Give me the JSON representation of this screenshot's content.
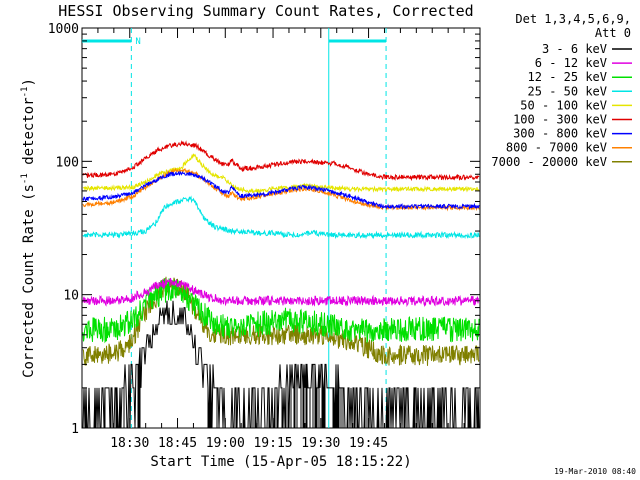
{
  "chart_data": {
    "type": "line",
    "title": "HESSI Observing Summary Count Rates, Corrected",
    "xlabel": "Start Time (15-Apr-05 18:15:22)",
    "ylabel_main": "Corrected Count Rate (s",
    "ylabel_sup1": "-1",
    "ylabel_mid": " detector",
    "ylabel_sup2": "-1",
    "ylabel_end": ")",
    "yscale": "log",
    "ylim": [
      1,
      1000
    ],
    "xlim_min": [
      0,
      125
    ],
    "ytick_labels": [
      "1",
      "10",
      "100",
      "1000"
    ],
    "ytick_values": [
      1,
      10,
      100,
      1000
    ],
    "xtick_labels": [
      "18:30",
      "18:45",
      "19:00",
      "19:15",
      "19:30",
      "19:45"
    ],
    "xtick_values_min": [
      15,
      30,
      45,
      60,
      75,
      90
    ],
    "legend_header": [
      "Det 1,3,4,5,6,9,",
      "Att 0"
    ],
    "timestamp": "19-Mar-2010 08:40",
    "night_flag": "N",
    "flag_color": "#00e5e5",
    "flag_lines_min": [
      {
        "t": 15.5,
        "style": "dashed"
      },
      {
        "t": 77.5,
        "style": "solid"
      },
      {
        "t": 95.5,
        "style": "dashed"
      }
    ],
    "flag_bars_min": [
      [
        0,
        15.5
      ],
      [
        77.5,
        95.5
      ]
    ],
    "series": [
      {
        "name": "3 - 6 keV",
        "color": "#000000",
        "x": [
          0,
          10,
          16,
          20,
          25,
          28,
          32,
          36,
          40,
          45,
          50,
          55,
          60,
          65,
          70,
          75,
          80,
          85,
          90,
          95
        ],
        "y": [
          1.5,
          1.5,
          2,
          4,
          7,
          8,
          7,
          4,
          2,
          1.5,
          1.5,
          1.6,
          1.8,
          2,
          2.5,
          2.5,
          2,
          1.6,
          1.5,
          1.5
        ]
      },
      {
        "name": "6 - 12 keV",
        "color": "#e000e0",
        "x": [
          0,
          10,
          16,
          20,
          25,
          28,
          32,
          36,
          40,
          45,
          55,
          65,
          75,
          85,
          95
        ],
        "y": [
          9,
          9,
          9.5,
          10.5,
          12,
          12.5,
          12,
          10.5,
          9.5,
          9,
          9,
          9,
          9,
          9,
          9
        ]
      },
      {
        "name": "12 - 25 keV",
        "color": "#00e000",
        "x": [
          0,
          10,
          16,
          20,
          25,
          28,
          32,
          36,
          40,
          45,
          55,
          65,
          75,
          85,
          95
        ],
        "y": [
          5.5,
          5.5,
          6.5,
          8.5,
          10.5,
          11,
          10.5,
          8,
          6.5,
          5.8,
          6,
          6.5,
          6,
          5.5,
          5.5
        ]
      },
      {
        "name": "25 - 50 keV",
        "color": "#00e5e5",
        "x": [
          0,
          10,
          16,
          20,
          23,
          26,
          28,
          30,
          32,
          35,
          38,
          42,
          47,
          55,
          60,
          65,
          72,
          80,
          88,
          95
        ],
        "y": [
          28,
          28,
          29,
          30,
          34,
          46,
          48,
          50,
          52,
          52,
          38,
          32,
          30,
          29,
          29,
          28,
          29,
          28,
          28,
          28
        ]
      },
      {
        "name": "50 - 100 keV",
        "color": "#e5e500",
        "x": [
          0,
          10,
          16,
          20,
          24,
          28,
          31,
          33,
          35,
          38,
          41,
          44,
          48,
          52,
          56,
          60,
          65,
          70,
          75,
          80,
          85,
          90,
          95
        ],
        "y": [
          63,
          63,
          64,
          70,
          80,
          86,
          88,
          100,
          112,
          92,
          80,
          76,
          64,
          60,
          60,
          62,
          64,
          66,
          64,
          63,
          62,
          62,
          62
        ]
      },
      {
        "name": "100 - 300 keV",
        "color": "#e00000",
        "x": [
          0,
          10,
          16,
          20,
          24,
          28,
          32,
          36,
          40,
          44,
          46,
          47,
          48,
          50,
          55,
          60,
          65,
          70,
          75,
          80,
          85,
          90,
          95
        ],
        "y": [
          78,
          80,
          90,
          105,
          122,
          132,
          136,
          130,
          110,
          95,
          93,
          103,
          96,
          88,
          90,
          94,
          98,
          100,
          98,
          96,
          88,
          80,
          76
        ]
      },
      {
        "name": "300 - 800 keV",
        "color": "#0000ff",
        "x": [
          0,
          10,
          16,
          20,
          24,
          28,
          32,
          36,
          40,
          44,
          46,
          47,
          48,
          50,
          55,
          60,
          65,
          70,
          75,
          80,
          85,
          90,
          95
        ],
        "y": [
          52,
          54,
          58,
          66,
          74,
          80,
          82,
          78,
          70,
          60,
          58,
          64,
          60,
          55,
          56,
          58,
          62,
          64,
          62,
          58,
          54,
          49,
          46
        ]
      },
      {
        "name": "800 - 7000 keV",
        "color": "#ff8000",
        "x": [
          0,
          10,
          16,
          20,
          24,
          28,
          32,
          36,
          40,
          44,
          46,
          47,
          48,
          50,
          55,
          60,
          65,
          70,
          75,
          80,
          85,
          90,
          95
        ],
        "y": [
          47,
          49,
          55,
          64,
          74,
          84,
          86,
          80,
          68,
          58,
          55,
          58,
          55,
          52,
          54,
          57,
          60,
          62,
          60,
          55,
          50,
          47,
          45
        ]
      },
      {
        "name": "7000 - 20000 keV",
        "color": "#808000",
        "x": [
          0,
          10,
          16,
          20,
          25,
          28,
          32,
          36,
          40,
          45,
          55,
          65,
          75,
          85,
          95
        ],
        "y": [
          3.5,
          3.6,
          4.5,
          7.5,
          11,
          12,
          11,
          7.5,
          5.2,
          5,
          5,
          5,
          5,
          4.5,
          3.5
        ]
      }
    ]
  }
}
